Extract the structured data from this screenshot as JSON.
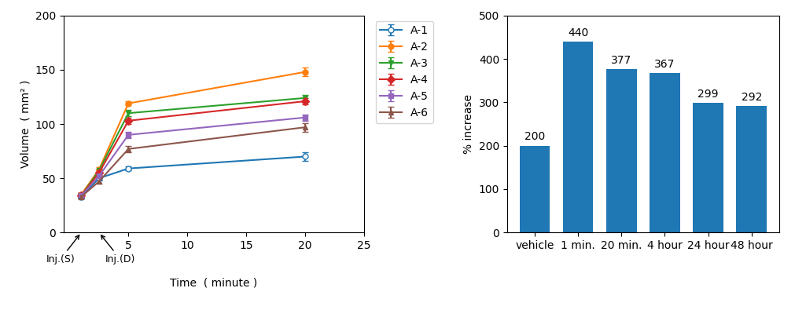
{
  "chart_data": [
    {
      "type": "line",
      "xlabel": "Time  ( minute )",
      "ylabel": "Volume  ( mm² )",
      "x": [
        1,
        2.5,
        5,
        20
      ],
      "xlim": [
        -0.5,
        25
      ],
      "xticks": [
        5,
        10,
        15,
        20,
        25
      ],
      "ylim": [
        0,
        200
      ],
      "yticks": [
        0,
        50,
        100,
        150,
        200
      ],
      "legend": "upper left",
      "series": [
        {
          "name": "A-1",
          "marker": "open_circle",
          "values": [
            33,
            50,
            59,
            70
          ],
          "yerr": [
            2,
            2,
            2,
            4
          ]
        },
        {
          "name": "A-2",
          "marker": "circle",
          "values": [
            35,
            58,
            119,
            148
          ],
          "yerr": [
            2,
            2,
            2,
            4
          ]
        },
        {
          "name": "A-3",
          "marker": "triangle_down",
          "values": [
            34,
            57,
            110,
            124
          ],
          "yerr": [
            2,
            2,
            3,
            3
          ]
        },
        {
          "name": "A-4",
          "marker": "diamond",
          "values": [
            34,
            55,
            103,
            121
          ],
          "yerr": [
            2,
            2,
            3,
            3
          ]
        },
        {
          "name": "A-5",
          "marker": "square",
          "values": [
            34,
            52,
            90,
            106
          ],
          "yerr": [
            2,
            2,
            3,
            3
          ]
        },
        {
          "name": "A-6",
          "marker": "triangle_up",
          "values": [
            33,
            47,
            77,
            97
          ],
          "yerr": [
            2,
            2,
            3,
            4
          ]
        }
      ],
      "annotations": [
        {
          "text": "Inj.(S)",
          "x": 1.0
        },
        {
          "text": "Inj.(D)",
          "x": 2.5
        }
      ]
    },
    {
      "type": "bar",
      "ylabel": "% increase",
      "categories": [
        "vehicle",
        "1 min.",
        "20 min.",
        "4 hour",
        "24 hour",
        "48 hour"
      ],
      "values": [
        200,
        440,
        377,
        367,
        299,
        292
      ],
      "data_labels": true,
      "ylim": [
        0,
        500
      ],
      "yticks": [
        0,
        100,
        200,
        300,
        400,
        500
      ]
    }
  ]
}
